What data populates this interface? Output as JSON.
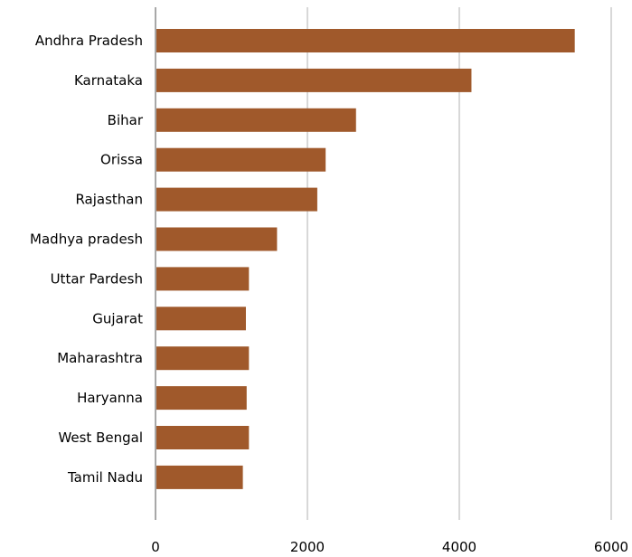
{
  "chart_data": {
    "type": "bar",
    "orientation": "horizontal",
    "title": "",
    "xlabel": "",
    "ylabel": "",
    "categories": [
      "Andhra Pradesh",
      "Karnataka",
      "Bihar",
      "Orissa",
      "Rajasthan",
      "Madhya pradesh",
      "Uttar Pardesh",
      "Gujarat",
      "Maharashtra",
      "Haryanna",
      "West Bengal",
      "Tamil Nadu"
    ],
    "values": [
      5520,
      4160,
      2640,
      2240,
      2130,
      1600,
      1230,
      1190,
      1230,
      1200,
      1230,
      1150
    ],
    "xlim": [
      0,
      6000
    ],
    "xticks": [
      "0",
      "2000",
      "4000",
      "6000"
    ],
    "grid": "vertical",
    "legend": "none",
    "bar_color": "#A0592B",
    "grid_color": "#b0b0b0",
    "axis_color": "#8c8c8c"
  }
}
